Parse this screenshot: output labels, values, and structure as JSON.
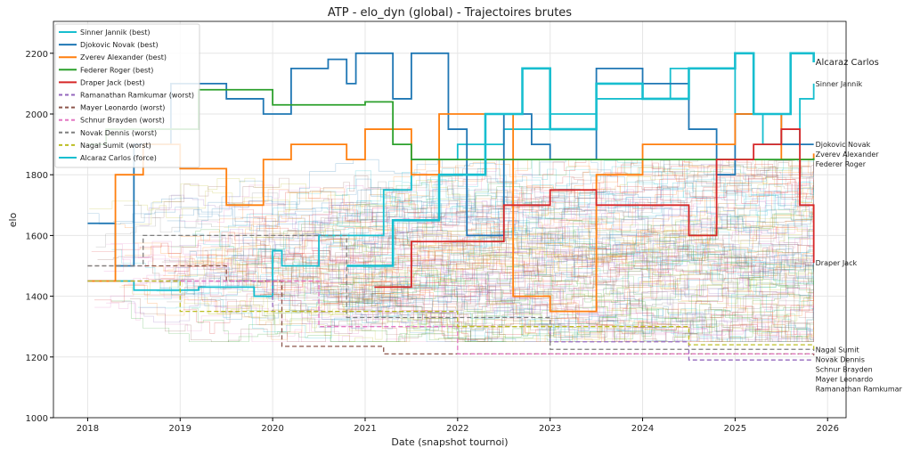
{
  "chart_data": {
    "type": "line",
    "title": "ATP - elo_dyn (global) - Trajectoires brutes",
    "xlabel": "Date (snapshot tournoi)",
    "ylabel": "elo",
    "xlim": [
      2017.63,
      2026.2
    ],
    "ylim": [
      1000,
      2305
    ],
    "xticks": [
      2018,
      2019,
      2020,
      2021,
      2022,
      2023,
      2024,
      2025,
      2026
    ],
    "yticks": [
      1000,
      1200,
      1400,
      1600,
      1800,
      2000,
      2200
    ],
    "grid": true,
    "legend_position": "top-left",
    "background": "many thin semi-transparent trajectories of other players, mostly 1300-1700",
    "series": [
      {
        "name": "Sinner Jannik (best)",
        "end_label": "Sinner Jannik",
        "color": "#17becf",
        "style": "solid",
        "x": [
          2018,
          2018.5,
          2019.2,
          2019.8,
          2020,
          2020.1,
          2020.5,
          2021.2,
          2021.5,
          2022,
          2022.5,
          2023,
          2023.5,
          2024,
          2024.3,
          2025,
          2025.3,
          2025.7,
          2025.85
        ],
        "y": [
          1450,
          1420,
          1430,
          1400,
          1550,
          1500,
          1600,
          1750,
          1850,
          1900,
          1950,
          2000,
          2050,
          2050,
          2150,
          2000,
          1900,
          2050,
          2100
        ]
      },
      {
        "name": "Djokovic Novak (best)",
        "end_label": "Djokovic Novak",
        "color": "#1f77b4",
        "style": "solid",
        "x": [
          2018,
          2018.3,
          2018.5,
          2018.9,
          2019.5,
          2019.9,
          2020.2,
          2020.6,
          2020.8,
          2020.9,
          2021.3,
          2021.5,
          2021.9,
          2022.1,
          2022.5,
          2022.8,
          2023,
          2023.5,
          2024,
          2024.5,
          2024.8,
          2025,
          2025.5,
          2025.85
        ],
        "y": [
          1640,
          1500,
          1900,
          2100,
          2050,
          2000,
          2150,
          2180,
          2100,
          2200,
          2050,
          2200,
          1950,
          1600,
          2000,
          1900,
          1850,
          2150,
          2100,
          1950,
          1800,
          2000,
          1900,
          1900
        ]
      },
      {
        "name": "Zverev Alexander (best)",
        "end_label": "Zverev Alexander",
        "color": "#ff7f0e",
        "style": "solid",
        "x": [
          2018,
          2018.3,
          2018.6,
          2019,
          2019.5,
          2019.9,
          2020.2,
          2020.8,
          2021,
          2021.5,
          2021.8,
          2022.2,
          2022.6,
          2023,
          2023.5,
          2024,
          2024.5,
          2025,
          2025.5,
          2025.85
        ],
        "y": [
          1450,
          1800,
          1900,
          1820,
          1700,
          1850,
          1900,
          1850,
          1950,
          1800,
          2000,
          2000,
          1400,
          1350,
          1800,
          1900,
          1900,
          2000,
          1850,
          1870
        ]
      },
      {
        "name": "Federer Roger (best)",
        "end_label": "Federer Roger",
        "color": "#2ca02c",
        "style": "solid",
        "x": [
          2018,
          2018.2,
          2019.2,
          2020,
          2021,
          2021.3,
          2021.5,
          2025.85
        ],
        "y": [
          1900,
          1950,
          2080,
          2030,
          2040,
          1900,
          1850,
          1855
        ]
      },
      {
        "name": "Draper Jack (best)",
        "end_label": "Draper Jack",
        "color": "#d62728",
        "style": "solid",
        "x": [
          2021.1,
          2021.5,
          2022.3,
          2022.5,
          2023,
          2023.5,
          2024.5,
          2024.8,
          2025.2,
          2025.5,
          2025.7,
          2025.85
        ],
        "y": [
          1430,
          1580,
          1580,
          1700,
          1750,
          1700,
          1600,
          1850,
          1900,
          1950,
          1700,
          1510
        ]
      },
      {
        "name": "Ramanathan Ramkumar (worst)",
        "end_label": "Ramanathan Ramkumar",
        "color": "#9467bd",
        "style": "dashed",
        "x": [
          2018,
          2020,
          2022,
          2023,
          2024.5,
          2025.85
        ],
        "y": [
          1450,
          1350,
          1300,
          1250,
          1190,
          1190
        ]
      },
      {
        "name": "Mayer Leonardo (worst)",
        "end_label": "Mayer Leonardo",
        "color": "#8c564b",
        "style": "dashed",
        "x": [
          2018,
          2019.5,
          2020.1,
          2021.2,
          2025.85
        ],
        "y": [
          1500,
          1450,
          1235,
          1210,
          1205
        ]
      },
      {
        "name": "Schnur Brayden (worst)",
        "end_label": "Schnur Brayden",
        "color": "#e377c2",
        "style": "dashed",
        "x": [
          2018,
          2020.5,
          2022,
          2025.85
        ],
        "y": [
          1450,
          1300,
          1210,
          1210
        ]
      },
      {
        "name": "Novak Dennis (worst)",
        "end_label": "Novak Dennis",
        "color": "#7f7f7f",
        "style": "dashed",
        "x": [
          2018,
          2018.6,
          2020.8,
          2023,
          2025.85
        ],
        "y": [
          1500,
          1600,
          1330,
          1225,
          1220
        ]
      },
      {
        "name": "Nagal Sumit (worst)",
        "end_label": "Nagal Sumit",
        "color": "#bcbd22",
        "style": "dashed",
        "x": [
          2018,
          2019,
          2022,
          2024.5,
          2025.85
        ],
        "y": [
          1450,
          1350,
          1300,
          1240,
          1225
        ]
      },
      {
        "name": "Alcaraz Carlos (force)",
        "end_label": "Alcaraz Carlos",
        "color": "#17becf",
        "style": "thick",
        "x": [
          2020.8,
          2021.3,
          2021.8,
          2022.3,
          2022.7,
          2023,
          2023.5,
          2024,
          2024.5,
          2025,
          2025.2,
          2025.6,
          2025.85
        ],
        "y": [
          1500,
          1650,
          1800,
          2000,
          2150,
          1950,
          2100,
          2050,
          2150,
          2200,
          2000,
          2200,
          2170
        ]
      }
    ]
  }
}
